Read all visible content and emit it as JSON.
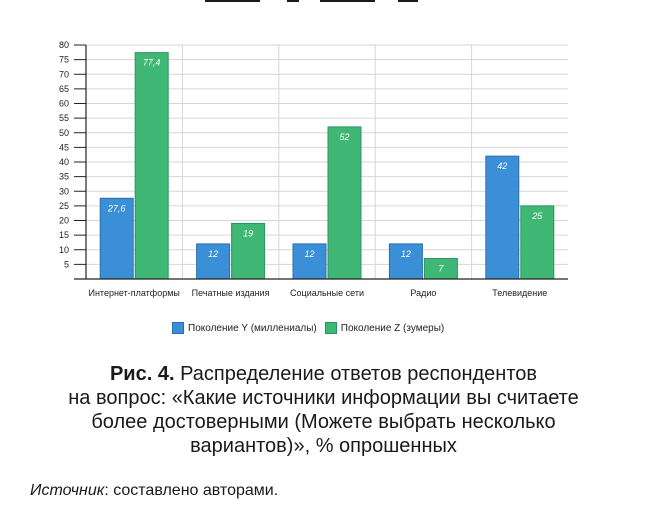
{
  "colors": {
    "series_y": "#3a8fd6",
    "series_z": "#3fb876",
    "grid": "#d6d6d6",
    "axis": "#222222"
  },
  "chart_data": {
    "type": "bar",
    "categories": [
      "Интернет-платформы",
      "Печатные издания",
      "Социальные сети",
      "Радио",
      "Телевидение"
    ],
    "series": [
      {
        "name": "Поколение Y (миллениалы)",
        "values": [
          27.6,
          12,
          12,
          12,
          42
        ],
        "labels": [
          "27,6",
          "12",
          "12",
          "12",
          "42"
        ]
      },
      {
        "name": "Поколение Z (зумеры)",
        "values": [
          77.4,
          19,
          52,
          7,
          25
        ],
        "labels": [
          "77,4",
          "19",
          "52",
          "7",
          "25"
        ]
      }
    ],
    "ylim": [
      0,
      80
    ],
    "yticks": [
      5,
      10,
      15,
      20,
      25,
      30,
      35,
      40,
      45,
      50,
      55,
      60,
      65,
      70,
      75,
      80
    ],
    "grid": true,
    "legend_position": "bottom"
  },
  "caption": {
    "label": "Рис. 4.",
    "text_line1": " Распределение ответов респондентов",
    "text_line2": "на вопрос: «Какие источники информации вы считаете",
    "text_line3": "более достоверными (Можете выбрать несколько",
    "text_line4": "вариантов)», % опрошенных"
  },
  "source": {
    "label": "Источник",
    "text": ": составлено авторами."
  }
}
